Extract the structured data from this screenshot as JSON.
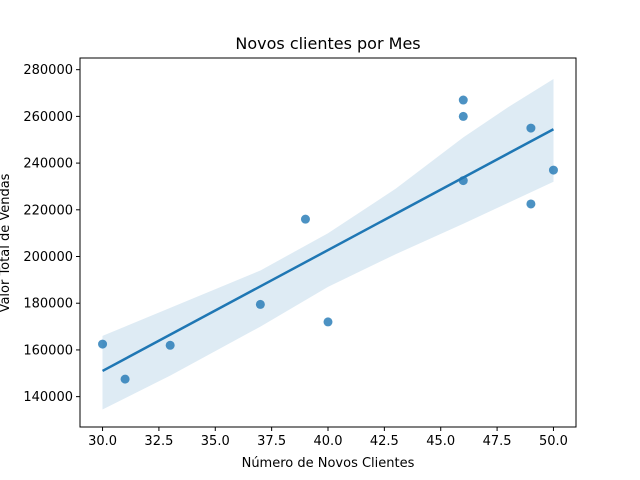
{
  "chart_data": {
    "type": "scatter",
    "title": "Novos clientes por Mes",
    "xlabel": "Número de Novos Clientes",
    "ylabel": "Valor Total de Vendas",
    "xlim": [
      29,
      51
    ],
    "ylim": [
      127000,
      285000
    ],
    "xticks": [
      "30.0",
      "32.5",
      "35.0",
      "37.5",
      "40.0",
      "42.5",
      "45.0",
      "47.5",
      "50.0"
    ],
    "yticks": [
      "140000",
      "160000",
      "180000",
      "200000",
      "220000",
      "240000",
      "260000",
      "280000"
    ],
    "points": [
      {
        "x": 30,
        "y": 162500
      },
      {
        "x": 31,
        "y": 147500
      },
      {
        "x": 33,
        "y": 162000
      },
      {
        "x": 37,
        "y": 179500
      },
      {
        "x": 39,
        "y": 216000
      },
      {
        "x": 40,
        "y": 172000
      },
      {
        "x": 46,
        "y": 267000
      },
      {
        "x": 46,
        "y": 260000
      },
      {
        "x": 46,
        "y": 232500
      },
      {
        "x": 49,
        "y": 255000
      },
      {
        "x": 49,
        "y": 222500
      },
      {
        "x": 50,
        "y": 237000
      }
    ],
    "regression_line": [
      {
        "x": 30,
        "y": 151000
      },
      {
        "x": 50,
        "y": 254500
      }
    ],
    "confidence_band": {
      "upper": [
        {
          "x": 30,
          "y": 166000
        },
        {
          "x": 33,
          "y": 178000
        },
        {
          "x": 37,
          "y": 194000
        },
        {
          "x": 40,
          "y": 210000
        },
        {
          "x": 43,
          "y": 229000
        },
        {
          "x": 46,
          "y": 251000
        },
        {
          "x": 48,
          "y": 264000
        },
        {
          "x": 50,
          "y": 276000
        }
      ],
      "lower": [
        {
          "x": 30,
          "y": 134500
        },
        {
          "x": 33,
          "y": 149000
        },
        {
          "x": 37,
          "y": 170000
        },
        {
          "x": 40,
          "y": 187000
        },
        {
          "x": 43,
          "y": 201000
        },
        {
          "x": 46,
          "y": 214000
        },
        {
          "x": 48,
          "y": 223000
        },
        {
          "x": 50,
          "y": 232000
        }
      ]
    },
    "colors": {
      "point": "#1f77b4",
      "line": "#1f77b4",
      "band": "#1f77b4"
    },
    "grid": false,
    "legend": "none"
  }
}
